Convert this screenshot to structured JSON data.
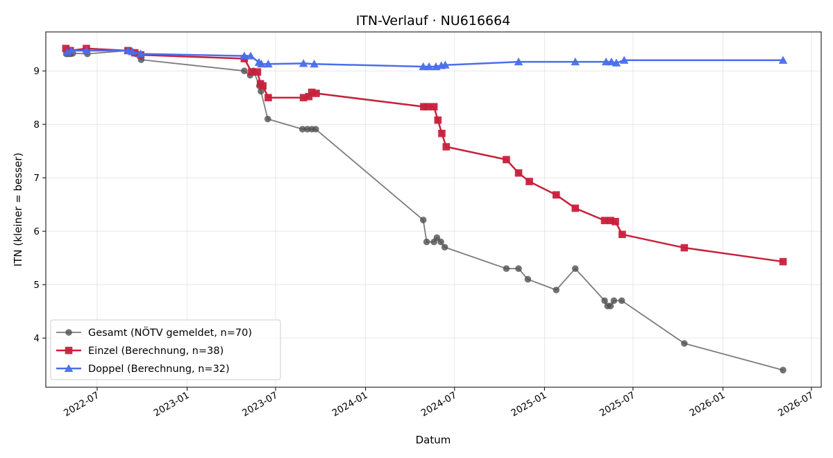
{
  "chart_data": {
    "type": "line",
    "title": "ITN-Verlauf · NU616664",
    "xlabel": "Datum",
    "ylabel": "ITN  (kleiner = besser)",
    "xlim": [
      "2022-03-18",
      "2026-07-21"
    ],
    "ylim": [
      3.08,
      9.73
    ],
    "x_ticks": [
      "2022-07",
      "2023-01",
      "2023-07",
      "2024-01",
      "2024-07",
      "2025-01",
      "2025-07",
      "2026-01",
      "2026-07"
    ],
    "y_ticks": [
      4,
      5,
      6,
      7,
      8,
      9
    ],
    "grid": true,
    "legend_position": "lower-left",
    "series": [
      {
        "name": "Gesamt (NÖTV gemeldet, n=70)",
        "color": "#505050",
        "marker": "circle",
        "points": [
          [
            "2022-04-29",
            9.32
          ],
          [
            "2022-05-03",
            9.32
          ],
          [
            "2022-05-08",
            9.32
          ],
          [
            "2022-05-12",
            9.33
          ],
          [
            "2022-06-11",
            9.32
          ],
          [
            "2022-09-02",
            9.38
          ],
          [
            "2022-09-10",
            9.36
          ],
          [
            "2022-09-18",
            9.32
          ],
          [
            "2022-09-29",
            9.21
          ],
          [
            "2023-04-28",
            9.0
          ],
          [
            "2023-05-10",
            8.92
          ],
          [
            "2023-05-17",
            9.0
          ],
          [
            "2023-05-29",
            8.72
          ],
          [
            "2023-06-01",
            8.62
          ],
          [
            "2023-06-15",
            8.1
          ],
          [
            "2023-08-25",
            7.91
          ],
          [
            "2023-09-04",
            7.91
          ],
          [
            "2023-09-13",
            7.91
          ],
          [
            "2023-09-21",
            7.91
          ],
          [
            "2024-04-28",
            6.21
          ],
          [
            "2024-05-05",
            5.8
          ],
          [
            "2024-05-20",
            5.8
          ],
          [
            "2024-05-26",
            5.88
          ],
          [
            "2024-06-03",
            5.8
          ],
          [
            "2024-06-11",
            5.7
          ],
          [
            "2024-10-15",
            5.3
          ],
          [
            "2024-11-09",
            5.3
          ],
          [
            "2024-11-28",
            5.1
          ],
          [
            "2025-01-25",
            4.9
          ],
          [
            "2025-03-05",
            5.3
          ],
          [
            "2025-05-04",
            4.7
          ],
          [
            "2025-05-10",
            4.6
          ],
          [
            "2025-05-16",
            4.6
          ],
          [
            "2025-05-23",
            4.7
          ],
          [
            "2025-06-08",
            4.7
          ],
          [
            "2025-10-14",
            3.9
          ],
          [
            "2026-05-04",
            3.4
          ]
        ]
      },
      {
        "name": "Einzel (Berechnung, n=38)",
        "color": "#c8203c",
        "marker": "square",
        "points": [
          [
            "2022-04-28",
            9.42
          ],
          [
            "2022-05-07",
            9.38
          ],
          [
            "2022-06-09",
            9.42
          ],
          [
            "2022-09-02",
            9.38
          ],
          [
            "2022-09-16",
            9.34
          ],
          [
            "2022-09-28",
            9.3
          ],
          [
            "2023-04-28",
            9.23
          ],
          [
            "2023-05-13",
            8.98
          ],
          [
            "2023-05-25",
            8.98
          ],
          [
            "2023-05-31",
            8.76
          ],
          [
            "2023-06-05",
            8.72
          ],
          [
            "2023-06-16",
            8.5
          ],
          [
            "2023-08-27",
            8.5
          ],
          [
            "2023-09-07",
            8.52
          ],
          [
            "2023-09-13",
            8.6
          ],
          [
            "2023-09-22",
            8.58
          ],
          [
            "2024-04-29",
            8.33
          ],
          [
            "2024-05-07",
            8.33
          ],
          [
            "2024-05-20",
            8.33
          ],
          [
            "2024-05-28",
            8.08
          ],
          [
            "2024-06-05",
            7.83
          ],
          [
            "2024-06-14",
            7.58
          ],
          [
            "2024-10-15",
            7.34
          ],
          [
            "2024-11-09",
            7.09
          ],
          [
            "2024-12-01",
            6.93
          ],
          [
            "2025-01-25",
            6.68
          ],
          [
            "2025-03-05",
            6.43
          ],
          [
            "2025-05-04",
            6.2
          ],
          [
            "2025-05-16",
            6.2
          ],
          [
            "2025-05-26",
            6.18
          ],
          [
            "2025-06-09",
            5.94
          ],
          [
            "2025-10-14",
            5.69
          ],
          [
            "2026-05-04",
            5.43
          ]
        ]
      },
      {
        "name": "Doppel (Berechnung, n=32)",
        "color": "#4a6eeb",
        "marker": "triangle",
        "points": [
          [
            "2022-05-01",
            9.35
          ],
          [
            "2022-05-09",
            9.38
          ],
          [
            "2022-06-09",
            9.38
          ],
          [
            "2022-09-02",
            9.38
          ],
          [
            "2022-09-11",
            9.36
          ],
          [
            "2022-09-28",
            9.32
          ],
          [
            "2023-04-28",
            9.28
          ],
          [
            "2023-05-11",
            9.28
          ],
          [
            "2023-05-28",
            9.16
          ],
          [
            "2023-06-02",
            9.13
          ],
          [
            "2023-06-16",
            9.13
          ],
          [
            "2023-08-27",
            9.14
          ],
          [
            "2023-09-18",
            9.13
          ],
          [
            "2024-04-28",
            9.08
          ],
          [
            "2024-05-10",
            9.08
          ],
          [
            "2024-05-24",
            9.08
          ],
          [
            "2024-06-04",
            9.1
          ],
          [
            "2024-06-12",
            9.11
          ],
          [
            "2024-11-09",
            9.17
          ],
          [
            "2025-03-05",
            9.17
          ],
          [
            "2025-05-07",
            9.17
          ],
          [
            "2025-05-18",
            9.17
          ],
          [
            "2025-05-28",
            9.15
          ],
          [
            "2025-06-13",
            9.2
          ],
          [
            "2026-05-04",
            9.2
          ]
        ]
      }
    ]
  }
}
